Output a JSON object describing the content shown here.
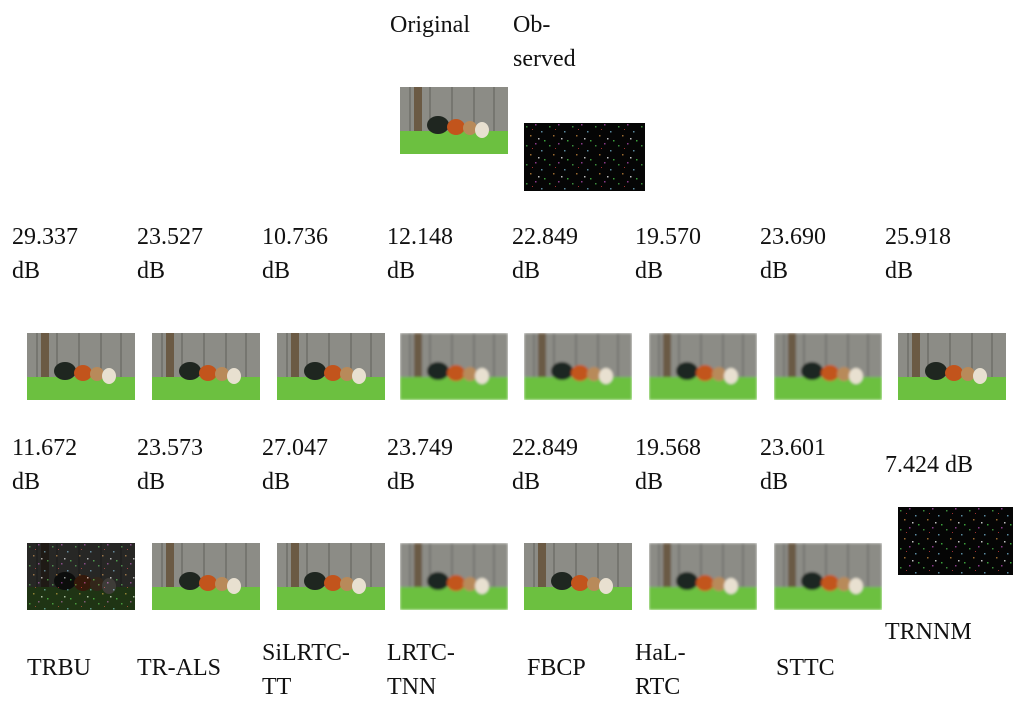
{
  "header": {
    "original": "Original",
    "observed": [
      "Ob-",
      "served"
    ]
  },
  "psnr_rows": [
    [
      [
        "29.337",
        "dB"
      ],
      [
        "23.527",
        "dB"
      ],
      [
        "10.736",
        "dB"
      ],
      [
        "12.148",
        "dB"
      ],
      [
        "22.849",
        "dB"
      ],
      [
        "19.570",
        "dB"
      ],
      [
        "23.690",
        "dB"
      ],
      [
        "25.918",
        "dB"
      ]
    ],
    [
      [
        "11.672",
        "dB"
      ],
      [
        "23.573",
        "dB"
      ],
      [
        "27.047",
        "dB"
      ],
      [
        "23.749",
        "dB"
      ],
      [
        "22.849",
        "dB"
      ],
      [
        "19.568",
        "dB"
      ],
      [
        "23.601",
        "dB"
      ],
      [
        "7.424 dB"
      ]
    ]
  ],
  "methods": [
    [
      "TRBU"
    ],
    [
      "TR-ALS"
    ],
    [
      "SiLRTC-",
      "TT"
    ],
    [
      "LRTC-",
      "TNN"
    ],
    [
      "FBCP"
    ],
    [
      "HaL-",
      "RTC"
    ],
    [
      "STTC"
    ],
    [
      "TRNNM"
    ]
  ]
}
